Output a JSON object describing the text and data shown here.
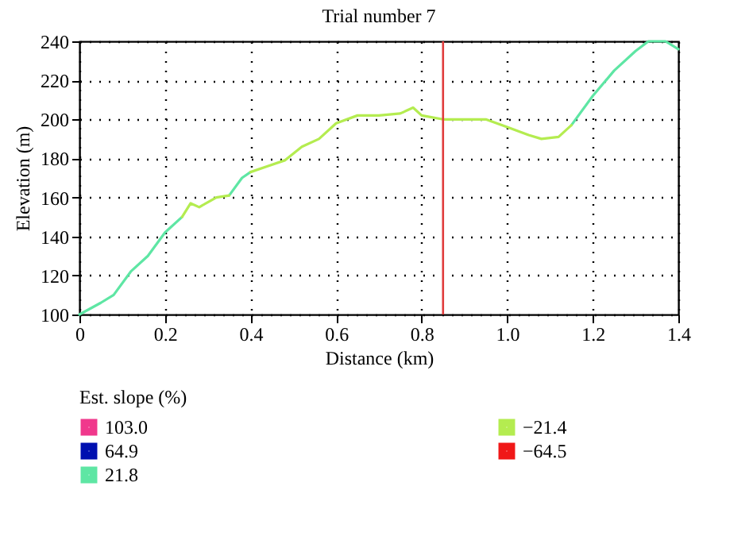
{
  "chart_data": {
    "type": "line",
    "title": "Trial number 7",
    "xlabel": "Distance (km)",
    "ylabel": "Elevation (m)",
    "legend_title": "Est. slope (%)",
    "x": [
      0,
      0.05,
      0.08,
      0.12,
      0.16,
      0.2,
      0.24,
      0.26,
      0.28,
      0.32,
      0.35,
      0.38,
      0.4,
      0.44,
      0.48,
      0.52,
      0.56,
      0.6,
      0.65,
      0.7,
      0.75,
      0.78,
      0.8,
      0.85,
      0.9,
      0.95,
      1.0,
      1.05,
      1.08,
      1.12,
      1.15,
      1.2,
      1.25,
      1.3,
      1.33,
      1.37,
      1.4
    ],
    "series": [
      {
        "name": "103.0",
        "color": "#f0388c",
        "values": [
          null,
          null,
          null,
          null,
          null,
          null,
          null,
          null,
          null,
          null,
          null,
          null,
          null,
          null,
          null,
          null,
          null,
          null,
          null,
          null,
          null,
          null,
          null,
          null,
          null,
          null,
          null,
          null,
          null,
          null,
          null,
          null,
          null,
          null,
          null,
          null,
          null
        ]
      },
      {
        "name": "64.9",
        "color": "#0010b0",
        "values": [
          null,
          null,
          null,
          null,
          null,
          null,
          null,
          null,
          null,
          null,
          null,
          null,
          null,
          null,
          null,
          null,
          null,
          null,
          null,
          null,
          null,
          null,
          null,
          null,
          null,
          null,
          null,
          null,
          null,
          null,
          null,
          null,
          null,
          null,
          null,
          null,
          null
        ]
      },
      {
        "name": "21.8",
        "color": "#5ee6a4",
        "values": [
          100,
          106,
          110,
          122,
          130,
          142,
          150,
          null,
          null,
          null,
          161,
          170,
          173,
          null,
          null,
          null,
          null,
          null,
          null,
          null,
          null,
          null,
          null,
          null,
          null,
          null,
          null,
          null,
          null,
          null,
          197,
          212,
          225,
          235,
          240,
          240,
          236
        ]
      },
      {
        "name": "−21.4",
        "color": "#b4ec50",
        "values": [
          null,
          null,
          null,
          null,
          null,
          null,
          150,
          157,
          155,
          160,
          161,
          null,
          173,
          176,
          179,
          186,
          190,
          198,
          202,
          202,
          203,
          206,
          202,
          200,
          200,
          200,
          196,
          192,
          190,
          191,
          197,
          null,
          null,
          null,
          null,
          null,
          null
        ]
      },
      {
        "name": "−64.5",
        "color": "#f01818",
        "values": [
          null,
          null,
          null,
          null,
          null,
          null,
          null,
          null,
          null,
          null,
          null,
          null,
          null,
          null,
          null,
          null,
          null,
          null,
          null,
          null,
          null,
          null,
          null,
          null,
          null,
          null,
          null,
          null,
          null,
          null,
          null,
          null,
          null,
          null,
          null,
          null,
          null
        ]
      }
    ],
    "xlim": [
      0,
      1.4
    ],
    "xticks": [
      0,
      0.2,
      0.4,
      0.6,
      0.8,
      {
        "value": 1,
        "label": "1.0"
      },
      1.2,
      1.4
    ],
    "ylim": [
      100,
      240
    ],
    "yticks": [
      100,
      120,
      140,
      160,
      180,
      200,
      220,
      240
    ],
    "ref_lines": [
      {
        "axis": "x",
        "value": 0.85,
        "color": "#e03c3c"
      }
    ],
    "grid": true,
    "legend": "bottom"
  }
}
